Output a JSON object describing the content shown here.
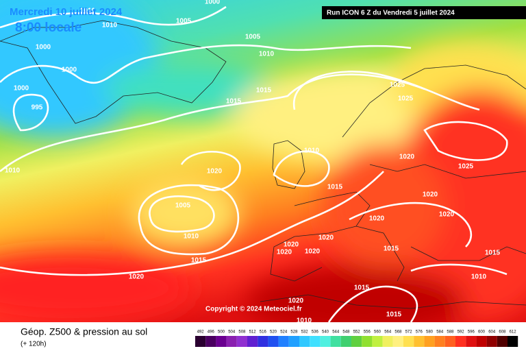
{
  "header": {
    "date": "Mercredi 10 juillet 2024",
    "time": "8:00 locale",
    "run": "Run ICON 6 Z du Vendredi 5 juillet 2024"
  },
  "copyright": "Copyright © 2024 Meteociel.fr",
  "isobar_labels": [
    1010,
    1010,
    1005,
    1000,
    1000,
    1000,
    1000,
    995,
    1005,
    1010,
    1015,
    1015,
    1025,
    1025,
    1010,
    1020,
    1010,
    1015,
    1020,
    1025,
    1020,
    1020,
    1005,
    1010,
    1020,
    1020,
    1020,
    1020,
    1020,
    1015,
    1015,
    1015,
    1020,
    1010,
    1015,
    1020,
    1010,
    1015
  ],
  "footer": {
    "title": "Géop. Z500 & pression au sol",
    "lead": "(+ 120h)"
  },
  "legend": {
    "labels": [
      492,
      496,
      500,
      504,
      508,
      512,
      516,
      520,
      524,
      528,
      532,
      536,
      540,
      544,
      548,
      552,
      556,
      560,
      564,
      568,
      572,
      576,
      580,
      584,
      588,
      592,
      596,
      600,
      604,
      608,
      612
    ],
    "colors": [
      "#2a0030",
      "#4a0060",
      "#6a0090",
      "#8a20b0",
      "#9030d0",
      "#6020d0",
      "#3030e0",
      "#2050f0",
      "#2080ff",
      "#20a0ff",
      "#30c8ff",
      "#40e0ff",
      "#50f0e0",
      "#40e0a0",
      "#40d070",
      "#60d040",
      "#90e030",
      "#c0f040",
      "#f0f060",
      "#fff080",
      "#ffe050",
      "#ffc030",
      "#ffa020",
      "#ff8020",
      "#ff6020",
      "#ff3020",
      "#e01010",
      "#c00000",
      "#900000",
      "#500000",
      "#000000"
    ]
  }
}
